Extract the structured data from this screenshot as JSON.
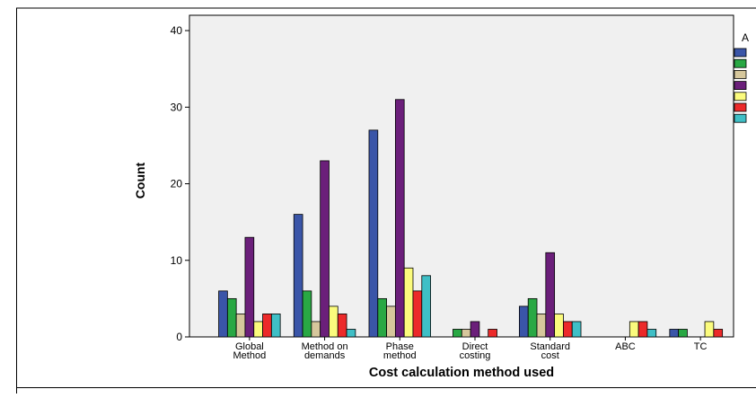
{
  "chart_data": {
    "type": "bar",
    "xlabel": "Cost calculation method used",
    "ylabel": "Count",
    "ylim": [
      0,
      42
    ],
    "yticks": [
      0,
      10,
      20,
      30,
      40
    ],
    "grid": false,
    "legend_placement": "right",
    "legend_title": "A",
    "categories": [
      [
        "Global",
        "Method"
      ],
      [
        "Method on",
        "demands"
      ],
      [
        "Phase",
        "method"
      ],
      [
        "Direct",
        "costing"
      ],
      [
        "Standard",
        "cost"
      ],
      [
        "ABC"
      ],
      [
        "TC"
      ]
    ],
    "series": [
      {
        "color": "#3a55a8",
        "values": [
          6,
          16,
          27,
          0,
          4,
          0,
          1
        ]
      },
      {
        "color": "#29a844",
        "values": [
          5,
          6,
          5,
          1,
          5,
          0,
          1
        ]
      },
      {
        "color": "#d6c79c",
        "values": [
          3,
          2,
          4,
          1,
          3,
          0,
          0
        ]
      },
      {
        "color": "#6b1f7a",
        "values": [
          13,
          23,
          31,
          2,
          11,
          0,
          0
        ]
      },
      {
        "color": "#fbfb7d",
        "values": [
          2,
          4,
          9,
          0,
          3,
          2,
          2
        ]
      },
      {
        "color": "#ec2a2a",
        "values": [
          3,
          3,
          6,
          1,
          2,
          2,
          1
        ]
      },
      {
        "color": "#3fbfc6",
        "values": [
          3,
          1,
          8,
          0,
          2,
          1,
          0
        ]
      }
    ]
  }
}
